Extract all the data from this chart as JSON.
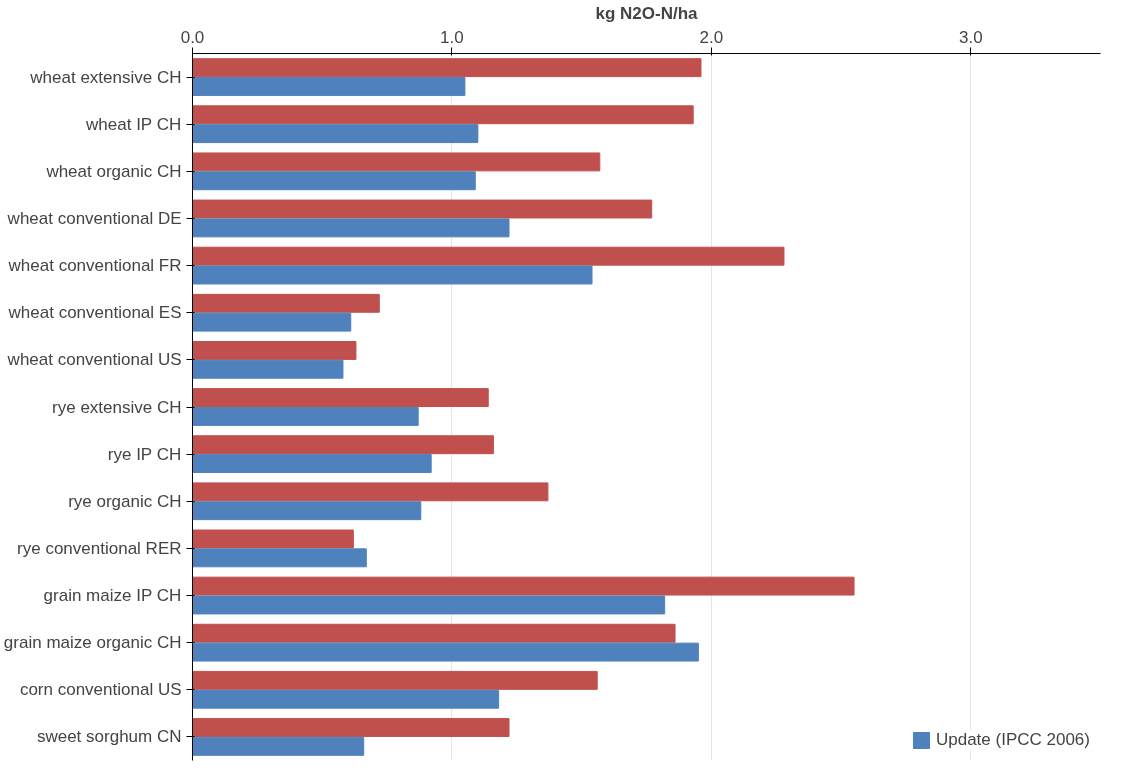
{
  "chart_data": {
    "type": "bar",
    "orientation": "horizontal",
    "xlabel": "kg N2O-N/ha",
    "categories": [
      "wheat extensive CH",
      "wheat IP CH",
      "wheat organic CH",
      "wheat conventional DE",
      "wheat conventional FR",
      "wheat conventional ES",
      "wheat conventional US",
      "rye extensive CH",
      "rye IP CH",
      "rye organic CH",
      "rye conventional RER",
      "grain maize IP CH",
      "grain maize organic CH",
      "corn conventional US",
      "sweet sorghum CN"
    ],
    "series": [
      {
        "color": "#c0504d",
        "values": [
          1.96,
          1.93,
          1.57,
          1.77,
          2.28,
          0.72,
          0.63,
          1.14,
          1.16,
          1.37,
          0.62,
          2.55,
          1.86,
          1.56,
          1.22
        ]
      },
      {
        "name": "Update (IPCC 2006)",
        "color": "#4f81bd",
        "values": [
          1.05,
          1.1,
          1.09,
          1.22,
          1.54,
          0.61,
          0.58,
          0.87,
          0.92,
          0.88,
          0.67,
          1.82,
          1.95,
          1.18,
          0.66
        ]
      }
    ],
    "xlim": [
      0,
      3.5
    ],
    "xticks": [
      {
        "value": 0,
        "label": "0.0"
      },
      {
        "value": 1,
        "label": "1.0"
      },
      {
        "value": 2,
        "label": "2.0"
      },
      {
        "value": 3,
        "label": "3.0"
      }
    ],
    "grid": "x",
    "legend": "bottom right"
  }
}
